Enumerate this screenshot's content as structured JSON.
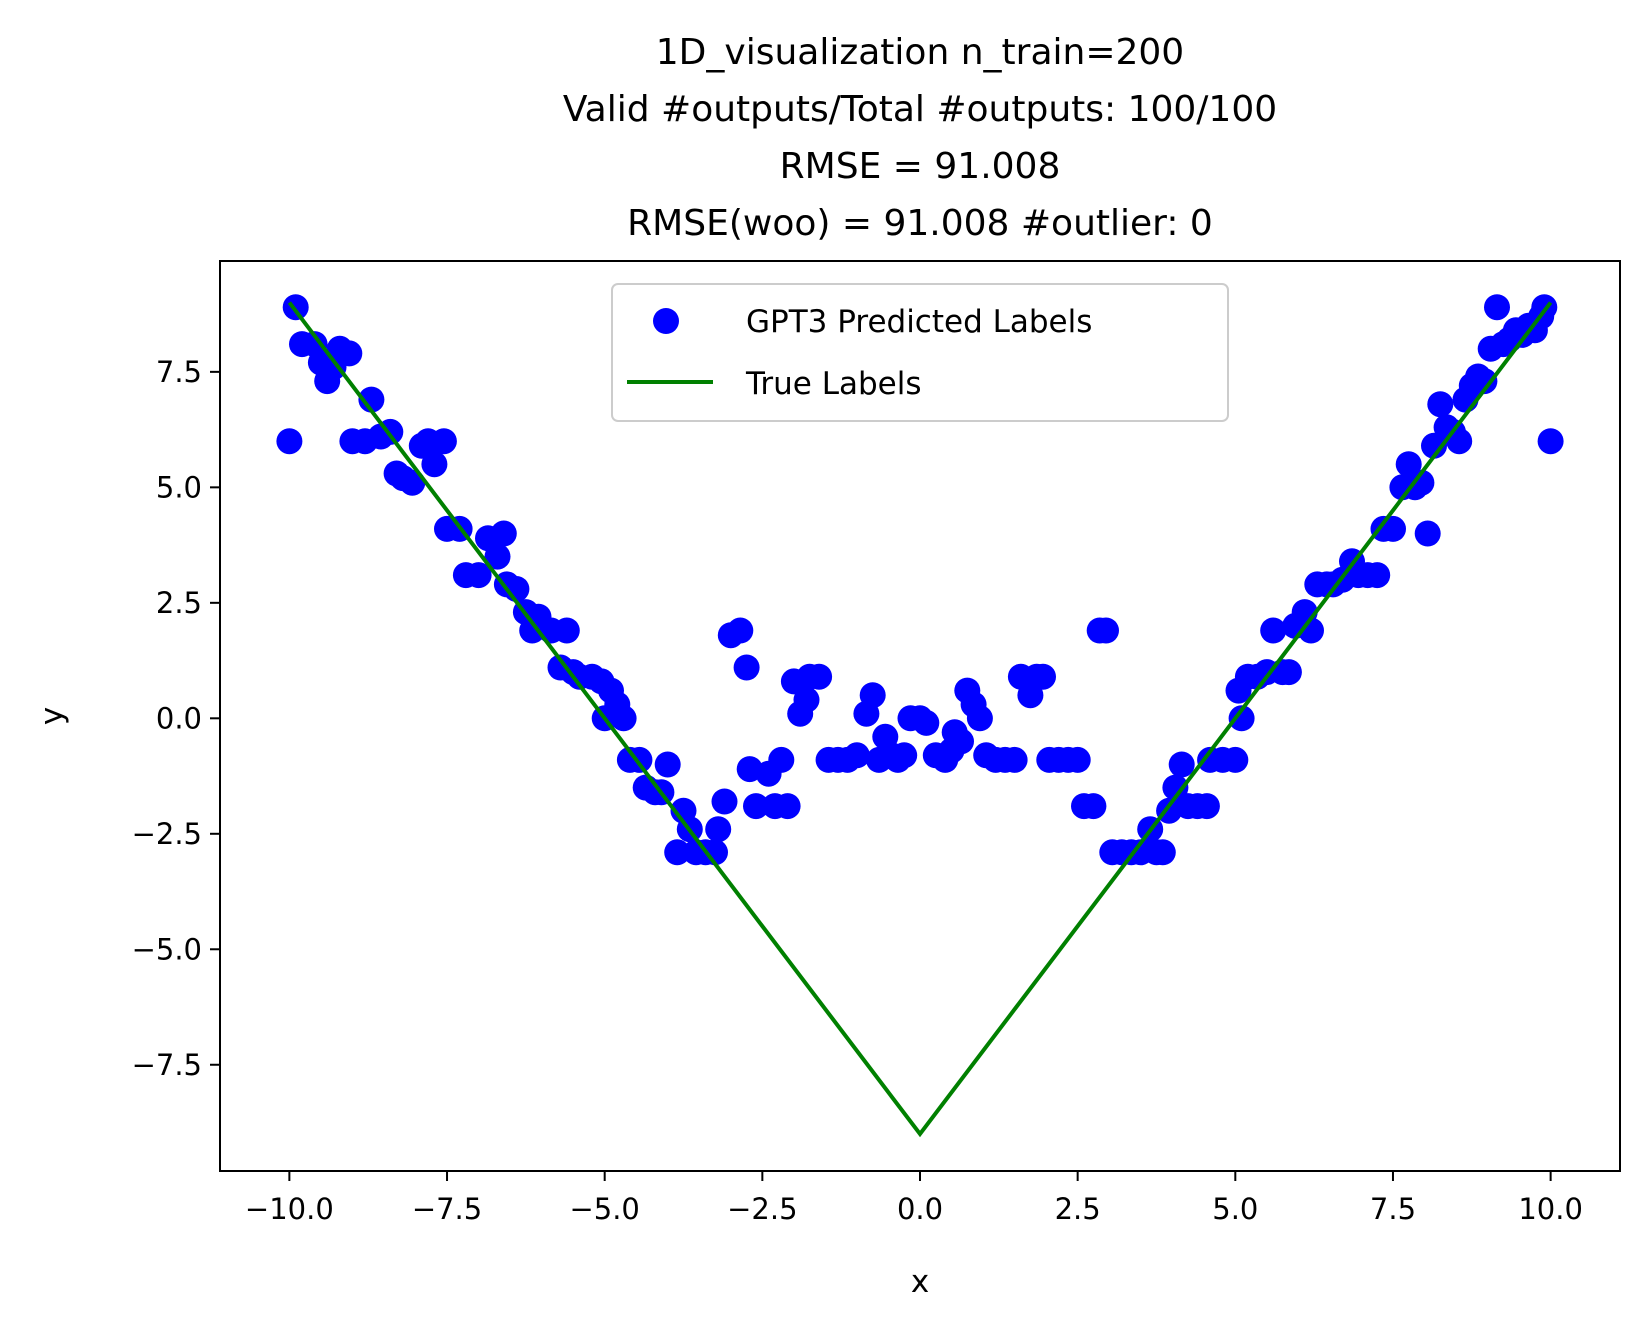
{
  "chart_data": {
    "type": "scatter",
    "title_lines": [
      "1D_visualization  n_train=200",
      "Valid #outputs/Total #outputs: 100/100",
      "RMSE      = 91.008",
      "RMSE(woo) = 91.008   #outlier: 0"
    ],
    "xlabel": "x",
    "ylabel": "y",
    "xlim": [
      -11.1,
      11.1
    ],
    "ylim": [
      -9.8,
      9.9
    ],
    "x_ticks": [
      -10.0,
      -7.5,
      -5.0,
      -2.5,
      0.0,
      2.5,
      5.0,
      7.5,
      10.0
    ],
    "x_tick_labels": [
      "−10.0",
      "−7.5",
      "−5.0",
      "−2.5",
      "0.0",
      "2.5",
      "5.0",
      "7.5",
      "10.0"
    ],
    "y_ticks": [
      -7.5,
      -5.0,
      -2.5,
      0.0,
      2.5,
      5.0,
      7.5
    ],
    "y_tick_labels": [
      "−7.5",
      "−5.0",
      "−2.5",
      "0.0",
      "2.5",
      "5.0",
      "7.5"
    ],
    "grid": false,
    "legend_position": "top-center",
    "series": [
      {
        "name": "GPT3 Predicted Labels",
        "kind": "scatter",
        "color": "#0000ff",
        "points": [
          [
            -10.0,
            6.0
          ],
          [
            -9.9,
            8.9
          ],
          [
            -9.8,
            8.1
          ],
          [
            -9.6,
            8.1
          ],
          [
            -9.5,
            7.7
          ],
          [
            -9.4,
            7.3
          ],
          [
            -9.3,
            7.6
          ],
          [
            -9.2,
            8.0
          ],
          [
            -9.05,
            7.9
          ],
          [
            -9.0,
            6.0
          ],
          [
            -8.8,
            6.0
          ],
          [
            -8.7,
            6.9
          ],
          [
            -8.55,
            6.1
          ],
          [
            -8.4,
            6.2
          ],
          [
            -8.3,
            5.3
          ],
          [
            -8.2,
            5.2
          ],
          [
            -8.05,
            5.1
          ],
          [
            -7.9,
            5.9
          ],
          [
            -7.8,
            6.0
          ],
          [
            -7.7,
            5.5
          ],
          [
            -7.55,
            6.0
          ],
          [
            -7.5,
            4.1
          ],
          [
            -7.3,
            4.1
          ],
          [
            -7.2,
            3.1
          ],
          [
            -7.0,
            3.1
          ],
          [
            -6.85,
            3.9
          ],
          [
            -6.7,
            3.5
          ],
          [
            -6.6,
            4.0
          ],
          [
            -6.55,
            2.9
          ],
          [
            -6.4,
            2.8
          ],
          [
            -6.25,
            2.3
          ],
          [
            -6.15,
            1.9
          ],
          [
            -6.05,
            2.2
          ],
          [
            -5.85,
            1.9
          ],
          [
            -5.7,
            1.1
          ],
          [
            -5.6,
            1.9
          ],
          [
            -5.5,
            1.0
          ],
          [
            -5.4,
            0.9
          ],
          [
            -5.2,
            0.9
          ],
          [
            -5.05,
            0.8
          ],
          [
            -5.0,
            0.0
          ],
          [
            -4.9,
            0.6
          ],
          [
            -4.8,
            0.3
          ],
          [
            -4.7,
            0.0
          ],
          [
            -4.6,
            -0.9
          ],
          [
            -4.45,
            -0.9
          ],
          [
            -4.35,
            -1.5
          ],
          [
            -4.2,
            -1.6
          ],
          [
            -4.1,
            -1.6
          ],
          [
            -4.0,
            -1.0
          ],
          [
            -3.85,
            -2.9
          ],
          [
            -3.75,
            -2.0
          ],
          [
            -3.65,
            -2.4
          ],
          [
            -3.55,
            -2.9
          ],
          [
            -3.4,
            -2.9
          ],
          [
            -3.25,
            -2.9
          ],
          [
            -3.2,
            -2.4
          ],
          [
            -3.1,
            -1.8
          ],
          [
            -3.0,
            1.8
          ],
          [
            -2.85,
            1.9
          ],
          [
            -2.75,
            1.1
          ],
          [
            -2.7,
            -1.1
          ],
          [
            -2.6,
            -1.9
          ],
          [
            -2.4,
            -1.2
          ],
          [
            -2.3,
            -1.9
          ],
          [
            -2.2,
            -0.9
          ],
          [
            -2.1,
            -1.9
          ],
          [
            -2.0,
            0.8
          ],
          [
            -1.9,
            0.1
          ],
          [
            -1.8,
            0.4
          ],
          [
            -1.75,
            0.9
          ],
          [
            -1.6,
            0.9
          ],
          [
            -1.45,
            -0.9
          ],
          [
            -1.3,
            -0.9
          ],
          [
            -1.15,
            -0.9
          ],
          [
            -1.0,
            -0.8
          ],
          [
            -0.85,
            0.1
          ],
          [
            -0.75,
            0.5
          ],
          [
            -0.65,
            -0.9
          ],
          [
            -0.55,
            -0.4
          ],
          [
            -0.45,
            -0.8
          ],
          [
            -0.35,
            -0.9
          ],
          [
            -0.25,
            -0.8
          ],
          [
            -0.15,
            0.0
          ],
          [
            0.0,
            0.0
          ],
          [
            0.1,
            -0.1
          ],
          [
            0.25,
            -0.8
          ],
          [
            0.4,
            -0.9
          ],
          [
            0.5,
            -0.7
          ],
          [
            0.55,
            -0.3
          ],
          [
            0.65,
            -0.5
          ],
          [
            0.75,
            0.6
          ],
          [
            0.85,
            0.3
          ],
          [
            0.95,
            0.0
          ],
          [
            1.05,
            -0.8
          ],
          [
            1.2,
            -0.9
          ],
          [
            1.35,
            -0.9
          ],
          [
            1.5,
            -0.9
          ],
          [
            1.6,
            0.9
          ],
          [
            1.75,
            0.5
          ],
          [
            1.85,
            0.9
          ],
          [
            1.95,
            0.9
          ],
          [
            2.05,
            -0.9
          ],
          [
            2.2,
            -0.9
          ],
          [
            2.35,
            -0.9
          ],
          [
            2.5,
            -0.9
          ],
          [
            2.6,
            -1.9
          ],
          [
            2.75,
            -1.9
          ],
          [
            2.85,
            1.9
          ],
          [
            2.95,
            1.9
          ],
          [
            3.05,
            -2.9
          ],
          [
            3.2,
            -2.9
          ],
          [
            3.35,
            -2.9
          ],
          [
            3.5,
            -2.9
          ],
          [
            3.65,
            -2.4
          ],
          [
            3.75,
            -2.9
          ],
          [
            3.85,
            -2.9
          ],
          [
            3.95,
            -2.0
          ],
          [
            4.05,
            -1.5
          ],
          [
            4.15,
            -1.0
          ],
          [
            4.25,
            -1.9
          ],
          [
            4.4,
            -1.9
          ],
          [
            4.55,
            -1.9
          ],
          [
            4.6,
            -0.9
          ],
          [
            4.8,
            -0.9
          ],
          [
            5.0,
            -0.9
          ],
          [
            5.05,
            0.6
          ],
          [
            5.1,
            0.0
          ],
          [
            5.2,
            0.9
          ],
          [
            5.35,
            0.9
          ],
          [
            5.5,
            1.0
          ],
          [
            5.6,
            1.9
          ],
          [
            5.75,
            1.0
          ],
          [
            5.85,
            1.0
          ],
          [
            5.95,
            2.0
          ],
          [
            6.1,
            2.3
          ],
          [
            6.2,
            1.9
          ],
          [
            6.3,
            2.9
          ],
          [
            6.45,
            2.9
          ],
          [
            6.55,
            2.9
          ],
          [
            6.7,
            3.0
          ],
          [
            6.85,
            3.4
          ],
          [
            6.95,
            3.1
          ],
          [
            7.1,
            3.1
          ],
          [
            7.25,
            3.1
          ],
          [
            7.35,
            4.1
          ],
          [
            7.5,
            4.1
          ],
          [
            7.65,
            5.0
          ],
          [
            7.75,
            5.5
          ],
          [
            7.85,
            5.0
          ],
          [
            7.95,
            5.1
          ],
          [
            8.05,
            4.0
          ],
          [
            8.15,
            5.9
          ],
          [
            8.25,
            6.8
          ],
          [
            8.35,
            6.3
          ],
          [
            8.45,
            6.2
          ],
          [
            8.55,
            6.0
          ],
          [
            8.65,
            6.9
          ],
          [
            8.75,
            7.2
          ],
          [
            8.85,
            7.4
          ],
          [
            8.95,
            7.3
          ],
          [
            9.05,
            8.0
          ],
          [
            9.15,
            8.9
          ],
          [
            9.25,
            8.1
          ],
          [
            9.35,
            8.2
          ],
          [
            9.45,
            8.4
          ],
          [
            9.55,
            8.3
          ],
          [
            9.65,
            8.5
          ],
          [
            9.75,
            8.4
          ],
          [
            9.85,
            8.7
          ],
          [
            9.9,
            8.9
          ],
          [
            10.0,
            6.0
          ]
        ]
      },
      {
        "name": "True Labels",
        "kind": "line",
        "color": "#008000",
        "x": [
          -10.0,
          -5.0,
          0.0,
          5.0,
          10.0
        ],
        "y": [
          9.0,
          0.0,
          -9.0,
          0.0,
          9.0
        ]
      }
    ]
  }
}
